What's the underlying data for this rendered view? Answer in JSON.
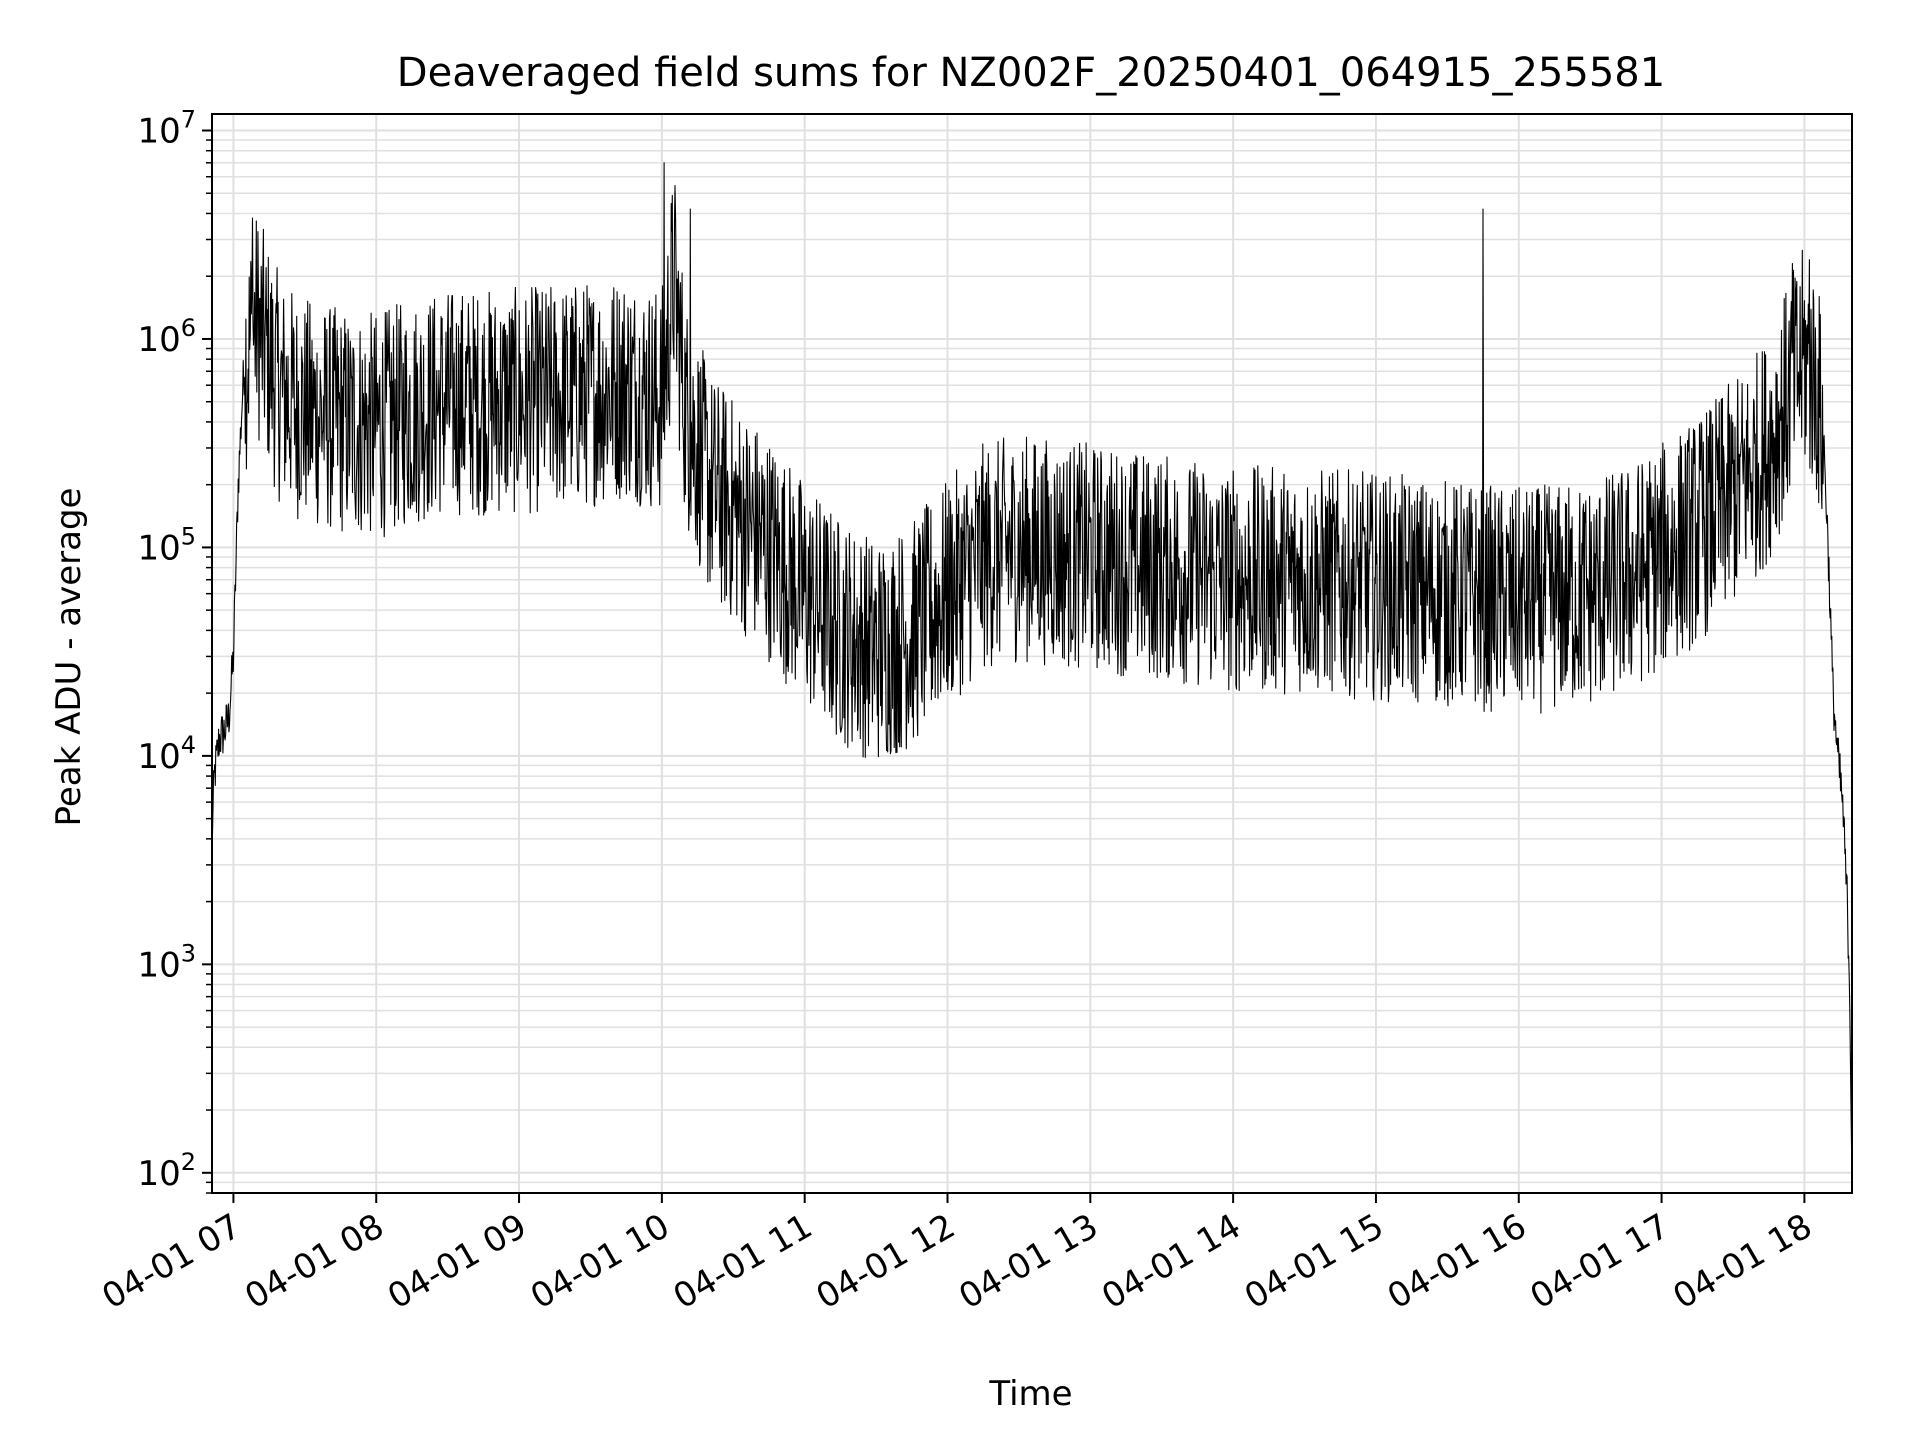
{
  "chart_data": {
    "type": "line",
    "title": "Deaveraged field sums for NZ002F_20250401_064915_255581",
    "xlabel": "Time",
    "ylabel": "Peak ADU - average",
    "yscale": "log",
    "ylim": [
      80,
      12000000
    ],
    "xlim": [
      "2025-04-01 06:51",
      "2025-04-01 18:20"
    ],
    "grid": true,
    "line_color": "#000000",
    "grid_color": "#e0e0e0",
    "x_ticks": [
      "04-01 07",
      "04-01 08",
      "04-01 09",
      "04-01 10",
      "04-01 11",
      "04-01 12",
      "04-01 13",
      "04-01 14",
      "04-01 15",
      "04-01 16",
      "04-01 17",
      "04-01 18"
    ],
    "y_ticks": [
      {
        "base": "10",
        "exp": "2"
      },
      {
        "base": "10",
        "exp": "3"
      },
      {
        "base": "10",
        "exp": "4"
      },
      {
        "base": "10",
        "exp": "5"
      },
      {
        "base": "10",
        "exp": "6"
      },
      {
        "base": "10",
        "exp": "7"
      }
    ],
    "series": [
      {
        "x": [
          "2025-04-01 06:51",
          "2025-04-01 06:52",
          "2025-04-01 06:54",
          "2025-04-01 06:56",
          "2025-04-01 06:58",
          "2025-04-01 07:00",
          "2025-04-01 07:02",
          "2025-04-01 07:04",
          "2025-04-01 07:05",
          "2025-04-01 07:07",
          "2025-04-01 07:10",
          "2025-04-01 07:12",
          "2025-04-01 07:15",
          "2025-04-01 07:20",
          "2025-04-01 07:30",
          "2025-04-01 07:45",
          "2025-04-01 08:00",
          "2025-04-01 08:15",
          "2025-04-01 08:30",
          "2025-04-01 09:00",
          "2025-04-01 09:30",
          "2025-04-01 09:45",
          "2025-04-01 10:00",
          "2025-04-01 10:05",
          "2025-04-01 10:10",
          "2025-04-01 10:15",
          "2025-04-01 10:20",
          "2025-04-01 10:30",
          "2025-04-01 10:45",
          "2025-04-01 11:00",
          "2025-04-01 11:15",
          "2025-04-01 11:30",
          "2025-04-01 11:45",
          "2025-04-01 12:00",
          "2025-04-01 12:15",
          "2025-04-01 12:30",
          "2025-04-01 13:00",
          "2025-04-01 13:30",
          "2025-04-01 14:00",
          "2025-04-01 14:30",
          "2025-04-01 15:00",
          "2025-04-01 15:30",
          "2025-04-01 16:00",
          "2025-04-01 16:30",
          "2025-04-01 16:45",
          "2025-04-01 17:00",
          "2025-04-01 17:15",
          "2025-04-01 17:30",
          "2025-04-01 17:45",
          "2025-04-01 17:55",
          "2025-04-01 18:00",
          "2025-04-01 18:05",
          "2025-04-01 18:08",
          "2025-04-01 18:10",
          "2025-04-01 18:12",
          "2025-04-01 18:14",
          "2025-04-01 18:16",
          "2025-04-01 18:18",
          "2025-04-01 18:19",
          "2025-04-01 18:20"
        ],
        "y": [
          4000,
          8000,
          12000,
          13000,
          15000,
          30000,
          200000,
          600000,
          800000,
          950000,
          1200000,
          1000000,
          800000,
          550000,
          450000,
          400000,
          380000,
          450000,
          500000,
          500000,
          550000,
          600000,
          500000,
          2000000,
          450000,
          300000,
          200000,
          150000,
          100000,
          60000,
          40000,
          32000,
          38000,
          60000,
          90000,
          100000,
          90000,
          80000,
          70000,
          70000,
          65000,
          60000,
          55000,
          60000,
          70000,
          90000,
          120000,
          180000,
          300000,
          600000,
          800000,
          600000,
          350000,
          100000,
          20000,
          10000,
          6000,
          2000,
          800,
          100
        ],
        "spike_times": [
          "2025-04-01 07:08",
          "2025-04-01 10:01",
          "2025-04-01 10:12",
          "2025-04-01 15:45",
          "2025-04-01 17:55",
          "2025-04-01 18:02"
        ],
        "spike_values": [
          3800000,
          7000000,
          4200000,
          4200000,
          2300000,
          2400000
        ]
      }
    ]
  }
}
